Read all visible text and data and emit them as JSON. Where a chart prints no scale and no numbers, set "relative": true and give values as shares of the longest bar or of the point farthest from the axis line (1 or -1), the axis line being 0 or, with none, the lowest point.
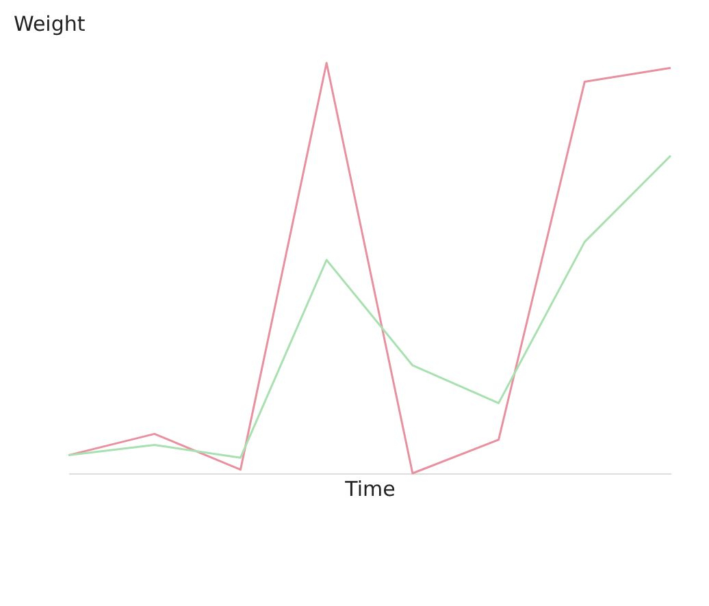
{
  "chart_data": {
    "type": "line",
    "xlabel": "Time",
    "ylabel": "Weight",
    "relative": true,
    "categories": [
      null,
      null,
      null,
      null,
      null,
      null,
      null,
      null
    ],
    "series": [
      {
        "color": "#e8909f",
        "values": [
          0.044,
          0.096,
          0.009,
          1,
          0,
          0.082,
          0.954,
          0.988
        ]
      },
      {
        "color": "#a8e0b0",
        "values": [
          0.044,
          0.069,
          0.038,
          0.52,
          0.263,
          0.171,
          0.564,
          0.774
        ]
      }
    ]
  }
}
